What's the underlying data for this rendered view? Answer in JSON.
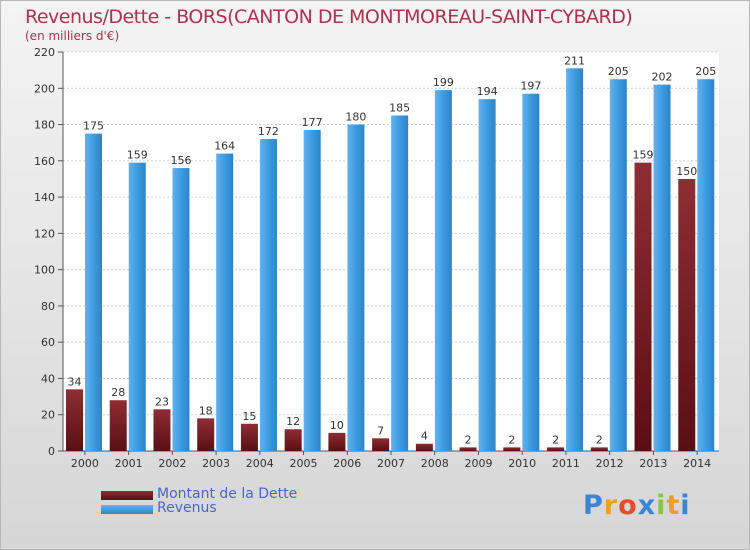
{
  "header": {
    "title": "Revenus/Dette - BORS(CANTON DE MONTMOREAU-SAINT-CYBARD)",
    "subtitle": "(en milliers d'€)"
  },
  "legend": {
    "debt_label": "Montant de la Dette",
    "revenue_label": "Revenus"
  },
  "logo": {
    "letters": [
      "P",
      "r",
      "o",
      "x",
      "i",
      "t",
      "i"
    ],
    "colors": [
      "#3a86d4",
      "#f0a020",
      "#e84a2a",
      "#3a86d4",
      "#8cc63e",
      "#f0a020",
      "#3a86d4"
    ]
  },
  "colors": {
    "debt": "#7a1c22",
    "revenue": "#3d9be0",
    "title": "#b03050"
  },
  "chart_data": {
    "type": "bar",
    "title": "Revenus/Dette - BORS(CANTON DE MONTMOREAU-SAINT-CYBARD)",
    "subtitle": "(en milliers d'€)",
    "categories": [
      "2000",
      "2001",
      "2002",
      "2003",
      "2004",
      "2005",
      "2006",
      "2007",
      "2008",
      "2009",
      "2010",
      "2011",
      "2012",
      "2013",
      "2014"
    ],
    "series": [
      {
        "name": "Montant de la Dette",
        "values": [
          34,
          28,
          23,
          18,
          15,
          12,
          10,
          7,
          4,
          2,
          2,
          2,
          2,
          159,
          150
        ]
      },
      {
        "name": "Revenus",
        "values": [
          175,
          159,
          156,
          164,
          172,
          177,
          180,
          185,
          199,
          194,
          197,
          211,
          205,
          202,
          205
        ]
      }
    ],
    "ylim": [
      0,
      220
    ],
    "yticks": [
      0,
      20,
      40,
      60,
      80,
      100,
      120,
      140,
      160,
      180,
      200,
      220
    ],
    "grid": true,
    "legend_position": "bottom-left"
  }
}
